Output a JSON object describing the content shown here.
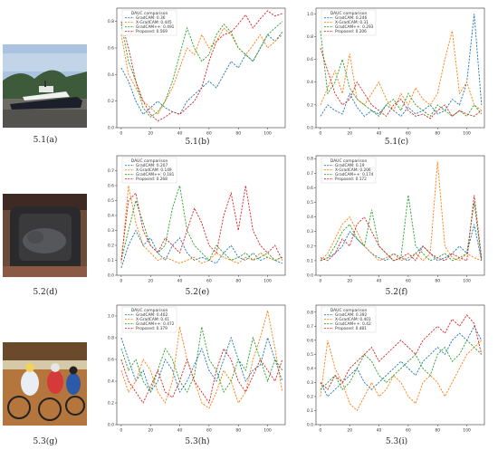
{
  "captions": [
    "5.1(a)",
    "5.1(b)",
    "5.1(c)",
    "5.2(d)",
    "5.2(e)",
    "5.2(f)",
    "5.3(g)",
    "5.3(h)",
    "5.3(i)"
  ],
  "colors": {
    "gradcam": "#1f77b4",
    "xgradcam": "#ff7f0e",
    "gradcampp": "#2ca02c",
    "proposed": "#d62728"
  },
  "chart_data": [
    {
      "type": "line",
      "legend_title": "DAUC comparison",
      "xlim": [
        -3,
        112
      ],
      "ylim": [
        0,
        0.9
      ],
      "xticks": [
        0,
        20,
        40,
        60,
        80,
        100
      ],
      "yticks": [
        0.0,
        0.2,
        0.4,
        0.6,
        0.8
      ],
      "ytick_labels": [
        "0.0",
        "0.2",
        "0.4",
        "0.6",
        "0.8"
      ],
      "series": [
        {
          "name": "GradCAM: 0.36",
          "key": "gradcam",
          "values": [
            0.45,
            0.35,
            0.2,
            0.1,
            0.15,
            0.2,
            0.15,
            0.12,
            0.1,
            0.2,
            0.25,
            0.3,
            0.35,
            0.3,
            0.4,
            0.5,
            0.45,
            0.55,
            0.5,
            0.6,
            0.7,
            0.65,
            0.72
          ]
        },
        {
          "name": "X-GradCAM: 0.445",
          "key": "xgradcam",
          "values": [
            0.7,
            0.4,
            0.3,
            0.2,
            0.15,
            0.1,
            0.2,
            0.3,
            0.45,
            0.6,
            0.55,
            0.7,
            0.6,
            0.65,
            0.75,
            0.7,
            0.6,
            0.55,
            0.62,
            0.7,
            0.6,
            0.65,
            0.7
          ]
        },
        {
          "name": "GradCAM++: 0.491",
          "key": "gradcampp",
          "values": [
            0.78,
            0.5,
            0.35,
            0.15,
            0.08,
            0.12,
            0.2,
            0.35,
            0.55,
            0.75,
            0.6,
            0.5,
            0.55,
            0.7,
            0.78,
            0.72,
            0.6,
            0.55,
            0.5,
            0.6,
            0.7,
            0.75,
            0.8
          ]
        },
        {
          "name": "Proposed: 0.569",
          "key": "proposed",
          "values": [
            0.8,
            0.6,
            0.35,
            0.2,
            0.1,
            0.05,
            0.08,
            0.12,
            0.1,
            0.15,
            0.2,
            0.3,
            0.5,
            0.65,
            0.7,
            0.72,
            0.78,
            0.85,
            0.75,
            0.82,
            0.88,
            0.84,
            0.86
          ]
        }
      ]
    },
    {
      "type": "line",
      "legend_title": "DAUC comparison",
      "xlim": [
        -3,
        112
      ],
      "ylim": [
        0,
        1.05
      ],
      "xticks": [
        0,
        20,
        40,
        60,
        80,
        100
      ],
      "yticks": [
        0.0,
        0.2,
        0.4,
        0.6,
        0.8,
        1.0
      ],
      "ytick_labels": [
        "0.0",
        "0.2",
        "0.4",
        "0.6",
        "0.8",
        "1.0"
      ],
      "series": [
        {
          "name": "GradCAM: 0.246",
          "key": "gradcam",
          "values": [
            0.1,
            0.2,
            0.15,
            0.12,
            0.3,
            0.18,
            0.1,
            0.15,
            0.12,
            0.2,
            0.15,
            0.1,
            0.18,
            0.12,
            0.15,
            0.2,
            0.12,
            0.15,
            0.25,
            0.2,
            0.4,
            1.0,
            0.2
          ]
        },
        {
          "name": "X-GradCAM: 0.31",
          "key": "xgradcam",
          "values": [
            0.2,
            0.35,
            0.5,
            0.3,
            0.65,
            0.25,
            0.2,
            0.3,
            0.4,
            0.25,
            0.15,
            0.3,
            0.2,
            0.35,
            0.25,
            0.2,
            0.3,
            0.6,
            0.85,
            0.3,
            0.4,
            0.2,
            0.15
          ]
        },
        {
          "name": "GradCAM++: 0.293",
          "key": "gradcampp",
          "values": [
            0.85,
            0.3,
            0.4,
            0.6,
            0.35,
            0.25,
            0.2,
            0.15,
            0.1,
            0.2,
            0.25,
            0.15,
            0.3,
            0.2,
            0.15,
            0.1,
            0.2,
            0.15,
            0.1,
            0.15,
            0.1,
            0.2,
            0.12
          ]
        },
        {
          "name": "Proposed: 0.206",
          "key": "proposed",
          "values": [
            0.7,
            0.5,
            0.3,
            0.2,
            0.25,
            0.4,
            0.3,
            0.2,
            0.15,
            0.1,
            0.2,
            0.25,
            0.15,
            0.1,
            0.12,
            0.08,
            0.15,
            0.2,
            0.1,
            0.15,
            0.12,
            0.1,
            0.15
          ]
        }
      ]
    },
    {
      "type": "line",
      "legend_title": "DAUC comparison",
      "xlim": [
        -3,
        112
      ],
      "ylim": [
        0,
        0.8
      ],
      "xticks": [
        0,
        20,
        40,
        60,
        80,
        100
      ],
      "yticks": [
        0.0,
        0.1,
        0.2,
        0.3,
        0.4,
        0.5,
        0.6,
        0.7
      ],
      "ytick_labels": [
        "0.0",
        "0.1",
        "0.2",
        "0.3",
        "0.4",
        "0.5",
        "0.6",
        "0.7"
      ],
      "series": [
        {
          "name": "GradCAM: 0.207",
          "key": "gradcam",
          "values": [
            0.05,
            0.2,
            0.3,
            0.2,
            0.25,
            0.15,
            0.1,
            0.2,
            0.25,
            0.15,
            0.1,
            0.12,
            0.1,
            0.08,
            0.15,
            0.2,
            0.12,
            0.1,
            0.15,
            0.1,
            0.12,
            0.1,
            0.08
          ]
        },
        {
          "name": "X-GradCAM: 0.149",
          "key": "xgradcam",
          "values": [
            0.08,
            0.6,
            0.35,
            0.2,
            0.15,
            0.1,
            0.12,
            0.1,
            0.08,
            0.1,
            0.12,
            0.08,
            0.1,
            0.15,
            0.12,
            0.1,
            0.08,
            0.12,
            0.1,
            0.15,
            0.12,
            0.1,
            0.12
          ]
        },
        {
          "name": "GradCAM++: 0.181",
          "key": "gradcampp",
          "values": [
            0.1,
            0.3,
            0.5,
            0.35,
            0.2,
            0.15,
            0.2,
            0.45,
            0.6,
            0.3,
            0.2,
            0.15,
            0.1,
            0.2,
            0.15,
            0.1,
            0.12,
            0.15,
            0.1,
            0.12,
            0.15,
            0.1,
            0.12
          ]
        },
        {
          "name": "Proposed: 0.268",
          "key": "proposed",
          "values": [
            0.1,
            0.5,
            0.55,
            0.3,
            0.2,
            0.15,
            0.25,
            0.2,
            0.15,
            0.3,
            0.45,
            0.35,
            0.2,
            0.15,
            0.4,
            0.55,
            0.3,
            0.6,
            0.3,
            0.2,
            0.15,
            0.2,
            0.1
          ]
        }
      ]
    },
    {
      "type": "line",
      "legend_title": "DAUC comparison",
      "xlim": [
        -3,
        112
      ],
      "ylim": [
        0,
        0.82
      ],
      "xticks": [
        0,
        20,
        40,
        60,
        80,
        100
      ],
      "yticks": [
        0.0,
        0.1,
        0.2,
        0.3,
        0.4,
        0.5,
        0.6,
        0.7,
        0.8
      ],
      "ytick_labels": [
        "0.0",
        "0.1",
        "0.2",
        "0.3",
        "0.4",
        "0.5",
        "0.6",
        "0.7",
        "0.8"
      ],
      "series": [
        {
          "name": "GradCAM: 0.19",
          "key": "gradcam",
          "values": [
            0.1,
            0.12,
            0.15,
            0.2,
            0.3,
            0.25,
            0.2,
            0.15,
            0.12,
            0.1,
            0.15,
            0.12,
            0.1,
            0.15,
            0.2,
            0.15,
            0.1,
            0.12,
            0.15,
            0.2,
            0.15,
            0.35,
            0.1
          ]
        },
        {
          "name": "X-GradCAM: 0.206",
          "key": "xgradcam",
          "values": [
            0.1,
            0.15,
            0.25,
            0.35,
            0.4,
            0.3,
            0.2,
            0.15,
            0.1,
            0.12,
            0.15,
            0.1,
            0.12,
            0.15,
            0.1,
            0.15,
            0.78,
            0.2,
            0.12,
            0.1,
            0.15,
            0.12,
            0.1
          ]
        },
        {
          "name": "GradCAM++: 0.174",
          "key": "gradcampp",
          "values": [
            0.1,
            0.12,
            0.2,
            0.3,
            0.35,
            0.25,
            0.2,
            0.45,
            0.2,
            0.15,
            0.1,
            0.12,
            0.55,
            0.2,
            0.15,
            0.1,
            0.12,
            0.15,
            0.1,
            0.12,
            0.15,
            0.5,
            0.1
          ]
        },
        {
          "name": "Proposed: 0.172",
          "key": "proposed",
          "values": [
            0.12,
            0.1,
            0.15,
            0.25,
            0.2,
            0.35,
            0.4,
            0.3,
            0.2,
            0.15,
            0.1,
            0.12,
            0.15,
            0.1,
            0.2,
            0.15,
            0.12,
            0.1,
            0.15,
            0.12,
            0.1,
            0.55,
            0.12
          ]
        }
      ]
    },
    {
      "type": "line",
      "legend_title": "DAUC comparison",
      "xlim": [
        -3,
        112
      ],
      "ylim": [
        0,
        1.1
      ],
      "xticks": [
        0,
        20,
        40,
        60,
        80,
        100
      ],
      "yticks": [
        0.0,
        0.2,
        0.4,
        0.6,
        0.8,
        1.0
      ],
      "ytick_labels": [
        "0.0",
        "0.2",
        "0.4",
        "0.6",
        "0.8",
        "1.0"
      ],
      "series": [
        {
          "name": "GradCAM: 0.402",
          "key": "gradcam",
          "values": [
            0.8,
            0.6,
            0.4,
            0.5,
            0.3,
            0.4,
            0.6,
            0.5,
            0.3,
            0.4,
            0.55,
            0.7,
            0.5,
            0.4,
            0.6,
            0.8,
            0.6,
            0.4,
            0.5,
            0.55,
            0.8,
            0.6,
            0.4
          ]
        },
        {
          "name": "X-GradCAM: 0.41",
          "key": "xgradcam",
          "values": [
            0.5,
            0.3,
            0.4,
            0.6,
            0.5,
            0.3,
            0.2,
            0.4,
            0.9,
            0.6,
            0.4,
            0.2,
            0.15,
            0.3,
            0.5,
            0.4,
            0.2,
            0.3,
            0.6,
            0.8,
            1.05,
            0.7,
            0.3
          ]
        },
        {
          "name": "GradCAM++: 0.472",
          "key": "gradcampp",
          "values": [
            0.7,
            0.5,
            0.6,
            0.4,
            0.3,
            0.5,
            0.7,
            0.6,
            0.4,
            0.3,
            0.45,
            0.9,
            0.6,
            0.5,
            0.3,
            0.4,
            0.6,
            0.5,
            0.8,
            0.6,
            0.4,
            0.6,
            0.5
          ]
        },
        {
          "name": "Proposed: 0.379",
          "key": "proposed",
          "values": [
            0.6,
            0.4,
            0.3,
            0.2,
            0.35,
            0.5,
            0.3,
            0.25,
            0.4,
            0.6,
            0.4,
            0.3,
            0.2,
            0.5,
            0.7,
            0.6,
            0.4,
            0.3,
            0.45,
            0.6,
            0.5,
            0.4,
            0.6
          ]
        }
      ]
    },
    {
      "type": "line",
      "legend_title": "DAUC comparison",
      "xlim": [
        -3,
        112
      ],
      "ylim": [
        0,
        0.85
      ],
      "xticks": [
        0,
        20,
        40,
        60,
        80,
        100
      ],
      "yticks": [
        0.0,
        0.1,
        0.2,
        0.3,
        0.4,
        0.5,
        0.6,
        0.7,
        0.8
      ],
      "ytick_labels": [
        "0.0",
        "0.1",
        "0.2",
        "0.3",
        "0.4",
        "0.5",
        "0.6",
        "0.7",
        "0.8"
      ],
      "series": [
        {
          "name": "GradCAM: 0.392",
          "key": "gradcam",
          "values": [
            0.3,
            0.2,
            0.25,
            0.3,
            0.35,
            0.4,
            0.3,
            0.25,
            0.3,
            0.35,
            0.4,
            0.45,
            0.4,
            0.35,
            0.45,
            0.5,
            0.55,
            0.5,
            0.6,
            0.65,
            0.6,
            0.7,
            0.6
          ]
        },
        {
          "name": "X-GradCAM: 0.401",
          "key": "xgradcam",
          "values": [
            0.2,
            0.6,
            0.4,
            0.3,
            0.15,
            0.1,
            0.2,
            0.3,
            0.2,
            0.25,
            0.35,
            0.3,
            0.2,
            0.15,
            0.3,
            0.35,
            0.3,
            0.2,
            0.3,
            0.4,
            0.5,
            0.55,
            0.6
          ]
        },
        {
          "name": "GradCAM++: 0.42",
          "key": "gradcampp",
          "values": [
            0.25,
            0.3,
            0.35,
            0.25,
            0.3,
            0.4,
            0.5,
            0.45,
            0.35,
            0.3,
            0.35,
            0.4,
            0.45,
            0.5,
            0.4,
            0.35,
            0.5,
            0.55,
            0.45,
            0.5,
            0.6,
            0.55,
            0.5
          ]
        },
        {
          "name": "Proposed: 0.481",
          "key": "proposed",
          "values": [
            0.3,
            0.25,
            0.35,
            0.3,
            0.4,
            0.45,
            0.5,
            0.55,
            0.45,
            0.5,
            0.55,
            0.6,
            0.55,
            0.5,
            0.6,
            0.65,
            0.7,
            0.65,
            0.75,
            0.7,
            0.78,
            0.72,
            0.5
          ]
        }
      ]
    }
  ]
}
